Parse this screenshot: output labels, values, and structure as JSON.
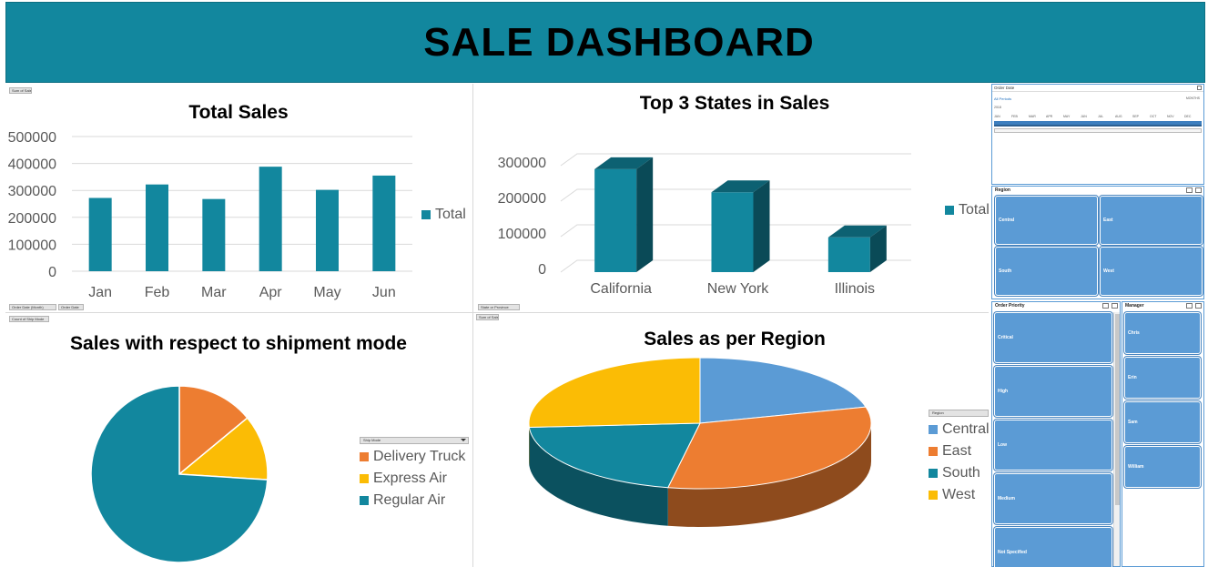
{
  "header": {
    "title": "SALE DASHBOARD"
  },
  "colors": {
    "banner": "#12879e",
    "teal": "#12879e",
    "orange": "#ed7d31",
    "yellow": "#fbbc05",
    "blue": "#5b9bd5"
  },
  "total_sales": {
    "field_buttons": {
      "value": "Sum of Sales",
      "axis_a": "Order Date (Month)",
      "axis_b": "Order Date"
    },
    "legend_label": "Total"
  },
  "top_states": {
    "field_buttons": {
      "value": "Sum of Sales",
      "axis": "State or Province"
    },
    "legend_label": "Total"
  },
  "shipment": {
    "field_buttons": {
      "value": "Count of Ship Mode",
      "legend_field": "Ship Mode"
    }
  },
  "region_sales": {
    "field_buttons": {
      "value": "Sum of Sales",
      "legend_field": "Region"
    }
  },
  "chart_data": [
    {
      "type": "bar",
      "title": "Total Sales",
      "categories": [
        "Jan",
        "Feb",
        "Mar",
        "Apr",
        "May",
        "Jun"
      ],
      "series": [
        {
          "name": "Total",
          "values": [
            272000,
            322000,
            268000,
            388000,
            302000,
            355000
          ],
          "color": "#12879e"
        }
      ],
      "ylim": [
        0,
        500000
      ],
      "yticks": [
        "500000",
        "400000",
        "300000",
        "200000",
        "100000",
        "0"
      ],
      "grid": true,
      "legend": "right"
    },
    {
      "type": "bar",
      "title": "Top 3 States in Sales",
      "categories": [
        "California",
        "New York",
        "Illinois"
      ],
      "series": [
        {
          "name": "Total",
          "values": [
            290000,
            225000,
            98000
          ],
          "color": "#12879e"
        }
      ],
      "ylim": [
        0,
        300000
      ],
      "yticks": [
        "300000",
        "200000",
        "100000",
        "0"
      ],
      "grid": true,
      "legend": "right"
    },
    {
      "type": "pie",
      "title": "Sales with respect to shipment mode",
      "labels": [
        "Delivery Truck",
        "Express Air",
        "Regular Air"
      ],
      "values": [
        14,
        12,
        74
      ],
      "colors": [
        "#ed7d31",
        "#fbbc05",
        "#12879e"
      ],
      "legend": "right"
    },
    {
      "type": "pie",
      "title": "Sales as per Region",
      "labels": [
        "Central",
        "East",
        "South",
        "West"
      ],
      "values": [
        21,
        32,
        21,
        26
      ],
      "colors": [
        "#5b9bd5",
        "#ed7d31",
        "#12879e",
        "#fbbc05"
      ],
      "legend": "right"
    }
  ],
  "slicers": {
    "order_date": {
      "title": "Order Date",
      "period_label": "All Periods",
      "level": "MONTHS",
      "year": "2018",
      "months": [
        "JAN",
        "FEB",
        "MAR",
        "APR",
        "MAY",
        "JUN",
        "JUL",
        "AUG",
        "SEP",
        "OCT",
        "NOV",
        "DEC"
      ]
    },
    "region": {
      "title": "Region",
      "items": [
        "Central",
        "East",
        "South",
        "West"
      ]
    },
    "order_priority": {
      "title": "Order Priority",
      "items": [
        "Critical",
        "High",
        "Low",
        "Medium",
        "Not Specified"
      ]
    },
    "manager": {
      "title": "Manager",
      "items": [
        "Chris",
        "Erin",
        "Sam",
        "William"
      ]
    }
  }
}
